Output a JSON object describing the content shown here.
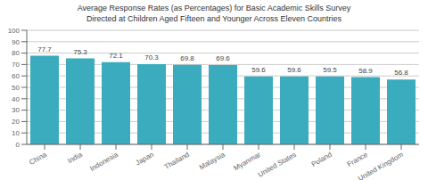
{
  "chart_data": {
    "type": "bar",
    "title": "Average Response Rates (as Percentages) for Basic Academic Skills Survey",
    "subtitle": "Directed at Children Aged Fifteen and Younger Across Eleven Countries",
    "categories": [
      "China",
      "India",
      "Indonesia",
      "Japan",
      "Thailand",
      "Malaysia",
      "Myanmar",
      "United States",
      "Poland",
      "France",
      "United Kingdom"
    ],
    "values": [
      77.7,
      75.3,
      72.1,
      70.3,
      69.8,
      69.6,
      59.6,
      59.6,
      59.5,
      58.9,
      56.8
    ],
    "color": "#3aacbe",
    "ylim": [
      0,
      100
    ],
    "yticks": [
      0,
      10,
      20,
      30,
      40,
      50,
      60,
      70,
      80,
      90,
      100
    ],
    "grid": true,
    "data_labels": true
  }
}
